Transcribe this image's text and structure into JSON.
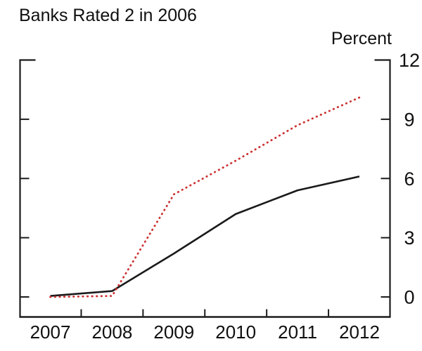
{
  "chart_data": {
    "type": "line",
    "title": "Banks Rated 2 in 2006",
    "ylabel": "Percent",
    "xlabel": "",
    "x": [
      2007,
      2008,
      2009,
      2010,
      2011,
      2012
    ],
    "x_tick_labels": [
      "2007",
      "2008",
      "2009",
      "2010",
      "2011",
      "2012"
    ],
    "yticks": [
      0,
      3,
      6,
      9,
      12
    ],
    "y_tick_labels": [
      "0",
      "3",
      "6",
      "9",
      "12"
    ],
    "ylim": [
      -1,
      12
    ],
    "y_axis_side": "right",
    "grid": false,
    "legend": "none",
    "frame_style": "left-right-bottom-with-top-corner-stubs",
    "axis_color": "#1c1c1c",
    "series": [
      {
        "name": "solid-black-line",
        "line_style": "solid",
        "color": "#1a1a1a",
        "values": [
          0.05,
          0.3,
          2.2,
          4.2,
          5.4,
          6.1
        ]
      },
      {
        "name": "dotted-red-line",
        "line_style": "dotted",
        "color": "#cc3333",
        "values": [
          0.0,
          0.05,
          5.2,
          6.9,
          8.7,
          10.1
        ]
      }
    ]
  }
}
